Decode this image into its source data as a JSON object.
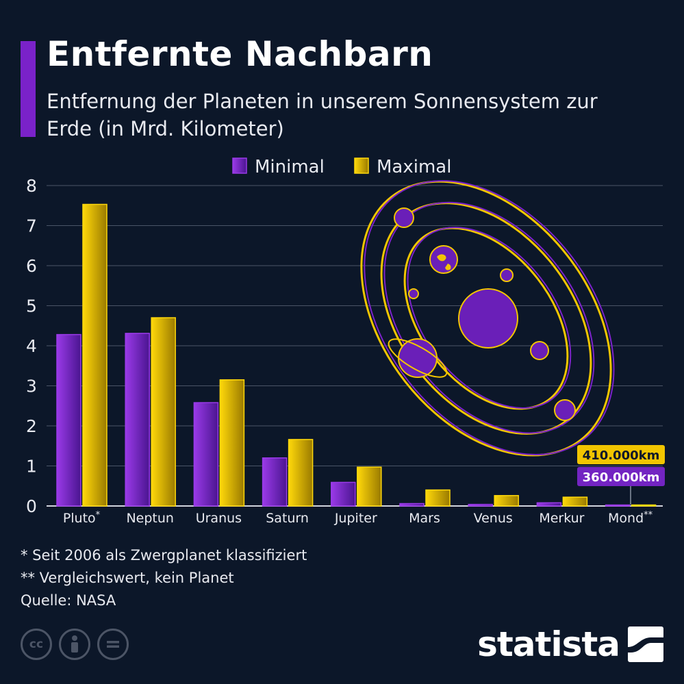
{
  "title": "Entfernte Nachbarn",
  "subtitle": "Entfernung der Planeten in unserem Sonnensystem zur Erde (in Mrd. Kilometer)",
  "colors": {
    "accent": "#7a22c9",
    "minimal": "#7324c2",
    "maximal": "#f2c500",
    "grid": "#4b5567",
    "background": "#0c1729"
  },
  "chart_data": {
    "type": "bar",
    "categories": [
      "Pluto*",
      "Neptun",
      "Uranus",
      "Saturn",
      "Jupiter",
      "Mars",
      "Venus",
      "Merkur",
      "Mond**"
    ],
    "series": [
      {
        "name": "Minimal",
        "values": [
          4.28,
          4.31,
          2.58,
          1.2,
          0.59,
          0.06,
          0.04,
          0.08,
          0.00036
        ]
      },
      {
        "name": "Maximal",
        "values": [
          7.53,
          4.7,
          3.15,
          1.66,
          0.97,
          0.4,
          0.26,
          0.22,
          0.00041
        ]
      }
    ],
    "ylim": [
      0,
      8
    ],
    "yticks": [
      "0",
      "1",
      "2",
      "3",
      "4",
      "5",
      "6",
      "7",
      "8"
    ],
    "grid": true,
    "legend_position": "top",
    "annotations": {
      "mond_max": "410.000km",
      "mond_min": "360.000km"
    }
  },
  "footnotes": [
    "*   Seit 2006 als Zwergplanet klassifiziert",
    "** Vergleichswert, kein Planet",
    "Quelle: NASA"
  ],
  "icons": [
    "cc-icon",
    "by-icon",
    "nd-icon",
    "solar-system-illustration"
  ],
  "brand": "statista"
}
